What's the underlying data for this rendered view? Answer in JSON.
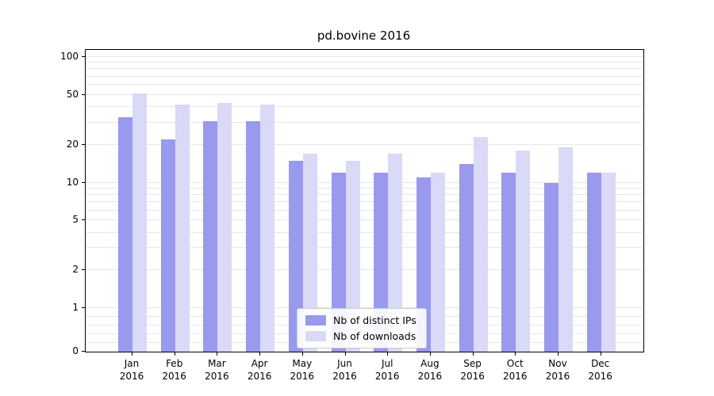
{
  "title": "pd.bovine 2016",
  "chart_data": {
    "type": "bar",
    "title": "pd.bovine 2016",
    "categories": [
      "Jan",
      "Feb",
      "Mar",
      "Apr",
      "May",
      "Jun",
      "Jul",
      "Aug",
      "Sep",
      "Oct",
      "Nov",
      "Dec"
    ],
    "year_label": "2016",
    "series": [
      {
        "name": "Nb of distinct IPs",
        "color": "#9999ee",
        "values": [
          33,
          22,
          31,
          31,
          15,
          12,
          12,
          11,
          14,
          12,
          10,
          12
        ]
      },
      {
        "name": "Nb of downloads",
        "color": "#d9d9f8",
        "values": [
          51,
          42,
          43,
          42,
          17,
          15,
          17,
          12,
          23,
          18,
          19,
          12
        ]
      }
    ],
    "yscale": "symlog",
    "yticks": [
      0,
      1,
      2,
      5,
      10,
      20,
      50,
      100
    ],
    "ylim": [
      0,
      114
    ],
    "grid": true,
    "legend_position": "lower center"
  }
}
